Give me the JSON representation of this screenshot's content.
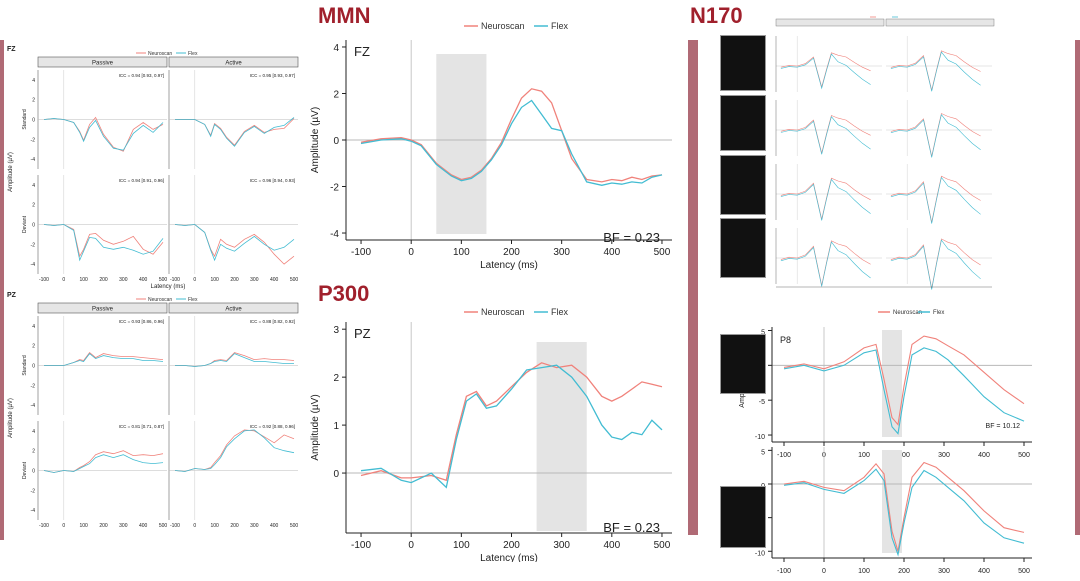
{
  "colors": {
    "accent": "#a0202c",
    "neuroscan": "#f0827b",
    "flex": "#42bcd2",
    "bar": "#b06a75",
    "shade": "#e4e4e4"
  },
  "titles": {
    "mmn": "MMN",
    "p300": "P300",
    "n170": "N170"
  },
  "legend": {
    "neuroscan": "Neuroscan",
    "flex": "Flex"
  },
  "chart_data": [
    {
      "id": "mmn-fz",
      "type": "line",
      "label": "FZ",
      "xlabel": "Latency (ms)",
      "ylabel": "Amplitude (µV)",
      "xlim": [
        -130,
        520
      ],
      "ylim": [
        -4.3,
        4.3
      ],
      "xticks": [
        -100,
        0,
        100,
        200,
        300,
        400,
        500
      ],
      "yticks": [
        -4,
        -2,
        0,
        2,
        4
      ],
      "shaded": [
        50,
        150
      ],
      "annotation": "BF = 0.23",
      "series": [
        {
          "name": "Neuroscan",
          "x": [
            -100,
            -60,
            -20,
            0,
            20,
            50,
            80,
            100,
            120,
            140,
            160,
            180,
            200,
            220,
            240,
            260,
            280,
            300,
            320,
            350,
            380,
            400,
            420,
            440,
            460,
            480,
            500
          ],
          "y": [
            -0.1,
            0.05,
            0.1,
            0,
            -0.2,
            -1.0,
            -1.5,
            -1.7,
            -1.6,
            -1.3,
            -0.8,
            -0.1,
            0.9,
            1.8,
            2.2,
            2.1,
            1.6,
            0.4,
            -0.8,
            -1.7,
            -1.8,
            -1.7,
            -1.75,
            -1.6,
            -1.7,
            -1.55,
            -1.5
          ]
        },
        {
          "name": "Flex",
          "x": [
            -100,
            -60,
            -20,
            0,
            20,
            50,
            80,
            100,
            120,
            140,
            160,
            180,
            200,
            220,
            240,
            260,
            280,
            300,
            320,
            350,
            380,
            400,
            420,
            440,
            460,
            480,
            500
          ],
          "y": [
            -0.15,
            0,
            0.05,
            -0.05,
            -0.25,
            -1.05,
            -1.55,
            -1.75,
            -1.65,
            -1.35,
            -0.85,
            -0.2,
            0.7,
            1.4,
            1.7,
            1.1,
            0.5,
            0.4,
            -0.6,
            -1.8,
            -1.95,
            -1.85,
            -1.9,
            -1.8,
            -1.85,
            -1.6,
            -1.5
          ]
        }
      ]
    },
    {
      "id": "p300-pz",
      "type": "line",
      "label": "PZ",
      "xlabel": "Latency (ms)",
      "ylabel": "Amplitude (µV)",
      "xlim": [
        -130,
        520
      ],
      "ylim": [
        -1.25,
        3.15
      ],
      "xticks": [
        -100,
        0,
        100,
        200,
        300,
        400,
        500
      ],
      "yticks": [
        0,
        1,
        2,
        3
      ],
      "shaded": [
        250,
        350
      ],
      "annotation": "BF = 0.23",
      "series": [
        {
          "name": "Neuroscan",
          "x": [
            -100,
            -60,
            -20,
            0,
            40,
            70,
            90,
            110,
            130,
            150,
            170,
            200,
            230,
            260,
            290,
            320,
            350,
            380,
            400,
            420,
            440,
            460,
            480,
            500
          ],
          "y": [
            -0.05,
            0.05,
            -0.1,
            -0.1,
            -0.05,
            -0.15,
            0.8,
            1.6,
            1.7,
            1.4,
            1.5,
            1.8,
            2.1,
            2.3,
            2.2,
            2.25,
            2.0,
            1.6,
            1.5,
            1.6,
            1.75,
            1.9,
            1.85,
            1.8
          ]
        },
        {
          "name": "Flex",
          "x": [
            -100,
            -60,
            -20,
            0,
            40,
            70,
            90,
            110,
            130,
            150,
            170,
            200,
            230,
            260,
            290,
            320,
            350,
            380,
            400,
            420,
            440,
            460,
            480,
            500
          ],
          "y": [
            0.05,
            0.1,
            -0.15,
            -0.2,
            0.0,
            -0.3,
            0.7,
            1.5,
            1.65,
            1.35,
            1.4,
            1.75,
            2.15,
            2.2,
            2.25,
            2.0,
            1.6,
            1.0,
            0.75,
            0.7,
            0.85,
            0.8,
            1.1,
            0.9
          ]
        }
      ]
    },
    {
      "id": "n170-p8",
      "type": "line",
      "label": "P8",
      "xlabel": "Latency (ms)",
      "ylabel": "Amplitude (µV)",
      "xlim": [
        -130,
        520
      ],
      "ylim": [
        -11,
        5.5
      ],
      "xticks": [
        -100,
        0,
        100,
        200,
        300,
        400,
        500
      ],
      "yticks": [
        -10,
        -5,
        0,
        5
      ],
      "shaded": [
        145,
        195
      ],
      "annotation": "BF = 10.12",
      "series": [
        {
          "name": "Neuroscan",
          "x": [
            -100,
            -50,
            0,
            50,
            100,
            130,
            150,
            170,
            185,
            200,
            220,
            250,
            280,
            310,
            350,
            400,
            450,
            500
          ],
          "y": [
            -0.3,
            0.2,
            -0.5,
            0.5,
            2.5,
            3.0,
            -2.0,
            -7.5,
            -8.5,
            -3.0,
            3.0,
            4.2,
            3.8,
            2.8,
            1.5,
            -1.0,
            -3.5,
            -5.5
          ]
        },
        {
          "name": "Flex",
          "x": [
            -100,
            -50,
            0,
            50,
            100,
            130,
            150,
            170,
            185,
            200,
            220,
            250,
            280,
            310,
            350,
            400,
            450,
            500
          ],
          "y": [
            -0.5,
            0.0,
            -0.8,
            0.0,
            1.8,
            2.2,
            -3.5,
            -8.8,
            -9.8,
            -4.5,
            1.5,
            2.5,
            2.0,
            0.8,
            -1.5,
            -4.5,
            -6.8,
            -8.0
          ]
        }
      ]
    },
    {
      "id": "n170-p8-inverted",
      "type": "line",
      "xlabel": "Latency (ms)",
      "ylabel": "Amplitude (µV)",
      "xlim": [
        -130,
        520
      ],
      "ylim": [
        -11,
        5.5
      ],
      "xticks": [
        -100,
        0,
        100,
        200,
        300,
        400,
        500
      ],
      "yticks": [
        -10,
        -5,
        0,
        5
      ],
      "shaded": [
        145,
        195
      ],
      "series": [
        {
          "name": "Neuroscan",
          "x": [
            -100,
            -50,
            0,
            50,
            100,
            130,
            150,
            170,
            185,
            200,
            220,
            250,
            280,
            310,
            350,
            400,
            450,
            500
          ],
          "y": [
            0.0,
            0.4,
            -0.5,
            -1.0,
            1.0,
            3.0,
            1.5,
            -7.0,
            -10.0,
            -5.0,
            1.0,
            3.2,
            2.5,
            1.0,
            -1.0,
            -4.0,
            -6.5,
            -7.2
          ]
        },
        {
          "name": "Flex",
          "x": [
            -100,
            -50,
            0,
            50,
            100,
            130,
            150,
            170,
            185,
            200,
            220,
            250,
            280,
            310,
            350,
            400,
            450,
            500
          ],
          "y": [
            -0.2,
            0.2,
            -0.8,
            -1.4,
            0.5,
            2.2,
            0.5,
            -8.0,
            -10.5,
            -5.8,
            -0.5,
            2.0,
            1.0,
            -0.5,
            -2.5,
            -5.8,
            -8.0,
            -8.8
          ]
        }
      ]
    }
  ],
  "small_panels": {
    "fz": {
      "label": "FZ",
      "cols": [
        "Passive",
        "Active"
      ],
      "rows": [
        "Standard",
        "Deviant"
      ],
      "icc": [
        "ICC = 0.94 [0.93, 0.97]",
        "ICC = 0.95 [0.93, 0.97]",
        "ICC = 0.94 [0.91, 0.96]",
        "ICC = 0.96 [0.94, 0.93]"
      ],
      "yticks": [
        "4",
        "2",
        "0",
        "-2",
        "-4"
      ],
      "xticks": [
        "-100",
        "0",
        "100",
        "200",
        "300",
        "400",
        "500"
      ],
      "xlabel": "Latency (ms)",
      "ylabel": "Amplitude (µV)"
    },
    "pz": {
      "label": "PZ",
      "cols": [
        "Passive",
        "Active"
      ],
      "rows": [
        "Standard",
        "Deviant"
      ],
      "icc": [
        "ICC = 0.93 [0.86, 0.96]",
        "ICC = 0.88 [0.82, 0.92]",
        "ICC = 0.81 [0.71, 0.87]",
        "ICC = 0.92 [0.88, 0.96]"
      ],
      "yticks": [
        "4",
        "2",
        "0",
        "-2",
        "-4"
      ],
      "xticks": [
        "-100",
        "0",
        "100",
        "200",
        "300",
        "400",
        "500"
      ],
      "xlabel": "Latency (ms)",
      "ylabel": "Amplitude (µV)"
    }
  }
}
